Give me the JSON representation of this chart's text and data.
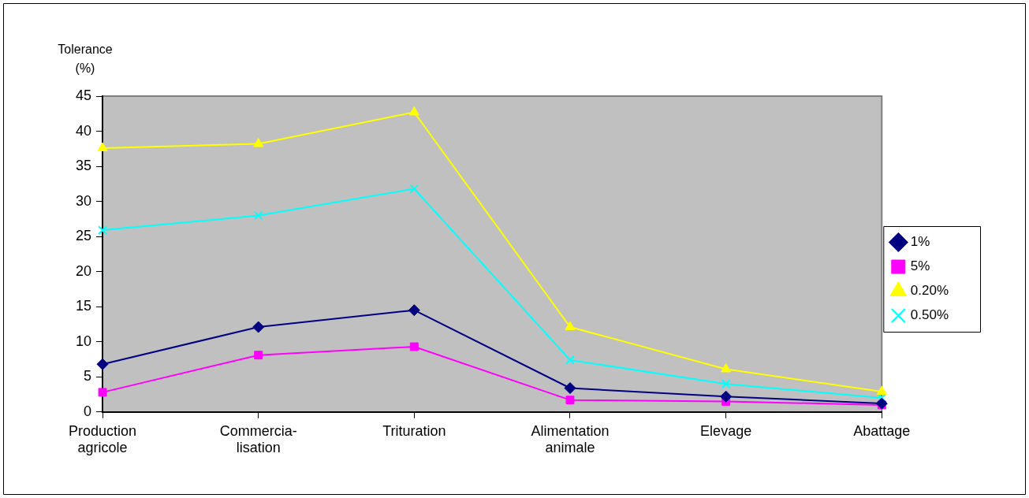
{
  "chart_data": {
    "type": "line",
    "ylabel": "Tolerance\n(%)",
    "categories": [
      "Production\nagricole",
      "Commercia-\nlisation",
      "Trituration",
      "Alimentation\nanimale",
      "Elevage",
      "Abattage"
    ],
    "ylim": [
      0,
      45
    ],
    "yticks": [
      0,
      5,
      10,
      15,
      20,
      25,
      30,
      35,
      40,
      45
    ],
    "grid": false,
    "legend": "right",
    "line_style": "solid",
    "series": [
      {
        "name": "1%",
        "color": "#000080",
        "marker": "diamond",
        "values": [
          6.8,
          12.1,
          14.5,
          3.4,
          2.2,
          1.2
        ]
      },
      {
        "name": "5%",
        "color": "#ff00ff",
        "marker": "square",
        "values": [
          2.8,
          8.1,
          9.3,
          1.7,
          1.5,
          1.0
        ]
      },
      {
        "name": "0.20%",
        "color": "#ffff00",
        "marker": "triangle",
        "values": [
          37.6,
          38.2,
          42.7,
          12.1,
          6.1,
          2.9
        ]
      },
      {
        "name": "0.50%",
        "color": "#00ffff",
        "marker": "cross",
        "values": [
          25.9,
          28.0,
          31.8,
          7.4,
          4.0,
          2.0
        ]
      }
    ]
  }
}
